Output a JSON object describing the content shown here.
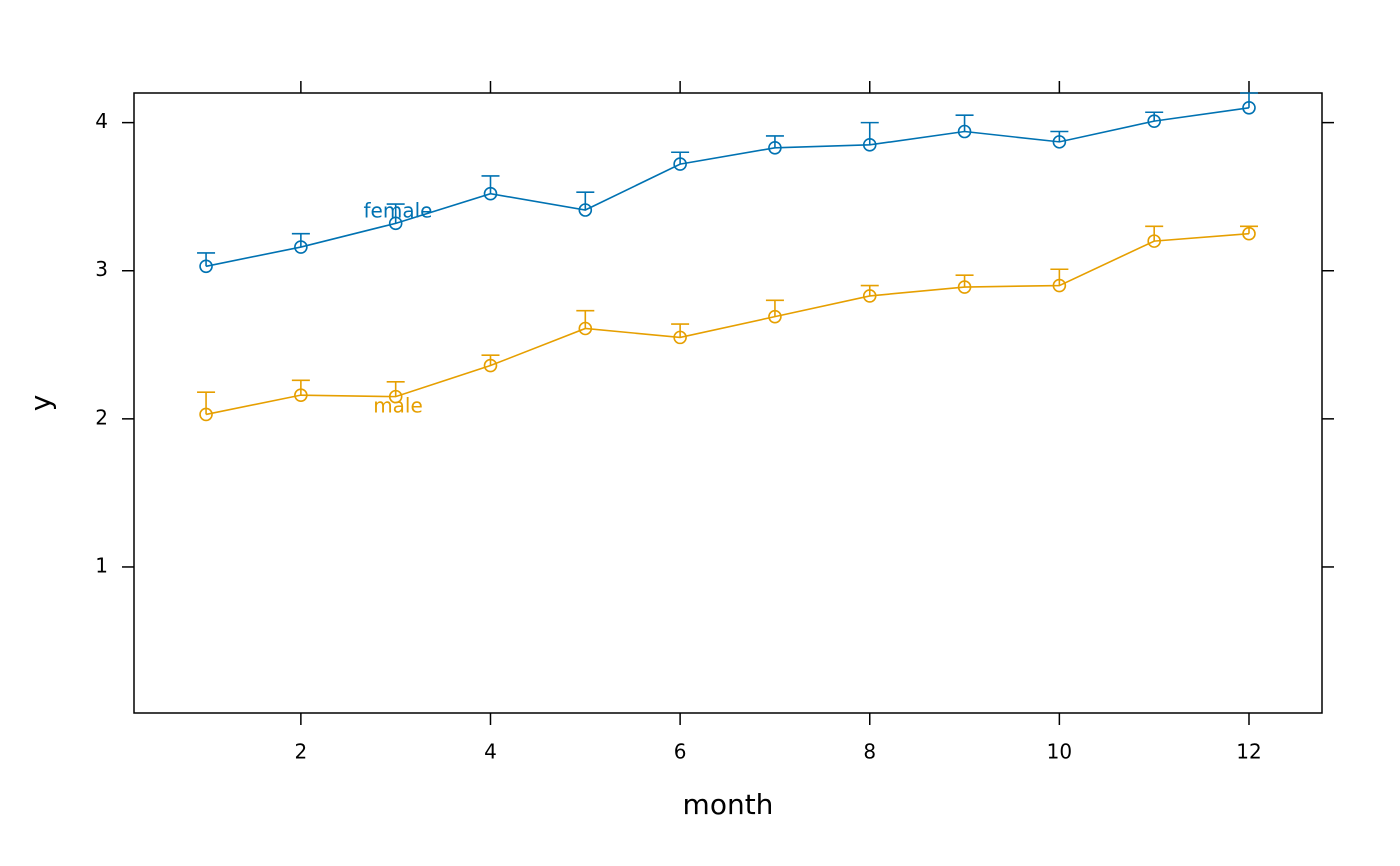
{
  "chart_data": {
    "type": "line",
    "x_label": "month",
    "y_label": "y",
    "x": [
      1,
      2,
      3,
      4,
      5,
      6,
      7,
      8,
      9,
      10,
      11,
      12
    ],
    "xlim": [
      0.24,
      12.77
    ],
    "xticks": [
      2,
      4,
      6,
      8,
      10,
      12
    ],
    "ylim": [
      0.014,
      4.2
    ],
    "yticks": [
      1,
      2,
      3,
      4
    ],
    "series": [
      {
        "name": "female",
        "color": "#0072b2",
        "values": [
          3.03,
          3.16,
          3.32,
          3.52,
          3.41,
          3.72,
          3.83,
          3.85,
          3.94,
          3.87,
          4.01,
          4.1
        ],
        "errors": [
          0.09,
          0.09,
          0.13,
          0.12,
          0.12,
          0.08,
          0.08,
          0.15,
          0.11,
          0.07,
          0.06,
          0.1
        ]
      },
      {
        "name": "male",
        "color": "#e69f00",
        "values": [
          2.03,
          2.16,
          2.15,
          2.36,
          2.61,
          2.55,
          2.69,
          2.83,
          2.89,
          2.9,
          3.2,
          3.25
        ],
        "errors": [
          0.15,
          0.1,
          0.1,
          0.07,
          0.12,
          0.09,
          0.11,
          0.07,
          0.08,
          0.11,
          0.1,
          0.05
        ]
      }
    ]
  }
}
